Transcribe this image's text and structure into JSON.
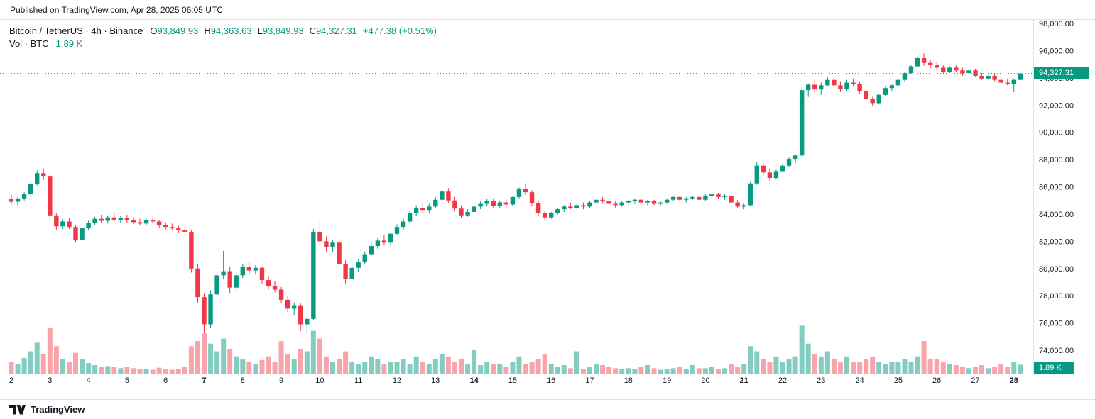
{
  "header": {
    "published": "Published on TradingView.com, Apr 28, 2025 06:05 UTC"
  },
  "legend": {
    "title": "Bitcoin / TetherUS · 4h · Binance",
    "ohlc": [
      {
        "label": "O",
        "value": "93,849.93"
      },
      {
        "label": "H",
        "value": "94,363.63"
      },
      {
        "label": "L",
        "value": "93,849.93"
      },
      {
        "label": "C",
        "value": "94,327.31"
      }
    ],
    "change": "+477.38 (+0.51%)",
    "volume_label": "Vol · BTC",
    "volume_value": "1.89 K"
  },
  "badges": {
    "last_price": "94,327.31",
    "last_volume": "1.89 K"
  },
  "footer": {
    "brand": "TradingView"
  },
  "colors": {
    "up": "#089981",
    "down": "#F23645",
    "vol_up": "rgba(8,153,129,0.5)",
    "vol_down": "rgba(242,54,69,0.45)",
    "badge_bg": "#089981",
    "axis_text": "#131722",
    "last_price_line": "#787b86",
    "separator": "#e0e3eb"
  },
  "chart_data": {
    "type": "candlestick",
    "title": "Bitcoin / TetherUS · 4h · Binance",
    "symbol": "Bitcoin / TetherUS",
    "interval": "4h",
    "exchange": "Binance",
    "legend_last": {
      "open": 93849.93,
      "high": 94363.63,
      "low": 93849.93,
      "close": 94327.31,
      "change": 477.38,
      "change_pct": 0.51,
      "volume_k": 1.89
    },
    "y_axis": {
      "top_value": 98260,
      "bottom_value": 72230,
      "tick_values": [
        98000,
        96000,
        94000,
        92000,
        90000,
        88000,
        86000,
        84000,
        82000,
        80000,
        78000,
        76000,
        74000
      ],
      "tick_labels": [
        "98,000.00",
        "96,000.00",
        "94,000.00",
        "92,000.00",
        "90,000.00",
        "88,000.00",
        "86,000.00",
        "84,000.00",
        "82,000.00",
        "80,000.00",
        "78,000.00",
        "76,000.00",
        "74,000.00"
      ]
    },
    "volume_axis": {
      "max_k": 9.7
    },
    "x_axis": {
      "ticks": [
        {
          "label": "2",
          "index": 0,
          "bold": false
        },
        {
          "label": "3",
          "index": 6,
          "bold": false
        },
        {
          "label": "4",
          "index": 12,
          "bold": false
        },
        {
          "label": "5",
          "index": 18,
          "bold": false
        },
        {
          "label": "6",
          "index": 24,
          "bold": false
        },
        {
          "label": "7",
          "index": 30,
          "bold": true
        },
        {
          "label": "8",
          "index": 36,
          "bold": false
        },
        {
          "label": "9",
          "index": 42,
          "bold": false
        },
        {
          "label": "10",
          "index": 48,
          "bold": false
        },
        {
          "label": "11",
          "index": 54,
          "bold": false
        },
        {
          "label": "12",
          "index": 60,
          "bold": false
        },
        {
          "label": "13",
          "index": 66,
          "bold": false
        },
        {
          "label": "14",
          "index": 72,
          "bold": true
        },
        {
          "label": "15",
          "index": 78,
          "bold": false
        },
        {
          "label": "16",
          "index": 84,
          "bold": false
        },
        {
          "label": "17",
          "index": 90,
          "bold": false
        },
        {
          "label": "18",
          "index": 96,
          "bold": false
        },
        {
          "label": "19",
          "index": 102,
          "bold": false
        },
        {
          "label": "20",
          "index": 108,
          "bold": false
        },
        {
          "label": "21",
          "index": 114,
          "bold": true
        },
        {
          "label": "22",
          "index": 120,
          "bold": false
        },
        {
          "label": "23",
          "index": 126,
          "bold": false
        },
        {
          "label": "24",
          "index": 132,
          "bold": false
        },
        {
          "label": "25",
          "index": 138,
          "bold": false
        },
        {
          "label": "26",
          "index": 144,
          "bold": false
        },
        {
          "label": "27",
          "index": 150,
          "bold": false
        },
        {
          "label": "28",
          "index": 156,
          "bold": true
        }
      ]
    },
    "candles": [
      [
        85100,
        85400,
        84700,
        84900
      ],
      [
        84900,
        85250,
        84650,
        85150
      ],
      [
        85150,
        85600,
        85000,
        85450
      ],
      [
        85450,
        86300,
        85350,
        86200
      ],
      [
        86200,
        87200,
        86100,
        87000
      ],
      [
        87000,
        87350,
        86500,
        86800
      ],
      [
        86800,
        86900,
        83600,
        83900
      ],
      [
        83900,
        84100,
        82800,
        83100
      ],
      [
        83100,
        83600,
        82900,
        83450
      ],
      [
        83450,
        83700,
        82900,
        83050
      ],
      [
        83050,
        83200,
        81900,
        82100
      ],
      [
        82100,
        83100,
        82000,
        82950
      ],
      [
        82950,
        83500,
        82800,
        83350
      ],
      [
        83350,
        83800,
        83200,
        83650
      ],
      [
        83650,
        83950,
        83350,
        83500
      ],
      [
        83500,
        83850,
        83300,
        83750
      ],
      [
        83750,
        84050,
        83450,
        83550
      ],
      [
        83550,
        83850,
        83350,
        83700
      ],
      [
        83700,
        83950,
        83350,
        83550
      ],
      [
        83550,
        83750,
        83250,
        83400
      ],
      [
        83400,
        83650,
        83150,
        83300
      ],
      [
        83300,
        83650,
        83200,
        83550
      ],
      [
        83550,
        83750,
        83300,
        83450
      ],
      [
        83450,
        83550,
        83000,
        83200
      ],
      [
        83200,
        83400,
        82850,
        83050
      ],
      [
        83050,
        83300,
        82800,
        82950
      ],
      [
        82950,
        83150,
        82650,
        82850
      ],
      [
        82850,
        83050,
        82550,
        82700
      ],
      [
        82700,
        82800,
        79700,
        80000
      ],
      [
        80000,
        80300,
        77500,
        77900
      ],
      [
        77900,
        78200,
        75300,
        75900
      ],
      [
        75900,
        78400,
        75600,
        78100
      ],
      [
        78100,
        79800,
        77900,
        79500
      ],
      [
        79500,
        81300,
        79200,
        79800
      ],
      [
        79800,
        80100,
        78200,
        78600
      ],
      [
        78600,
        79700,
        78400,
        79500
      ],
      [
        79500,
        80300,
        79300,
        80100
      ],
      [
        80100,
        80450,
        79600,
        79850
      ],
      [
        79850,
        80250,
        79550,
        80050
      ],
      [
        80050,
        80150,
        78900,
        79150
      ],
      [
        79150,
        79450,
        78450,
        78700
      ],
      [
        78700,
        79050,
        78250,
        78450
      ],
      [
        78450,
        78650,
        77450,
        77700
      ],
      [
        77700,
        77950,
        76800,
        77050
      ],
      [
        77050,
        77500,
        76550,
        77300
      ],
      [
        77300,
        77450,
        75400,
        75900
      ],
      [
        75900,
        76500,
        75300,
        76300
      ],
      [
        76300,
        82900,
        76200,
        82700
      ],
      [
        82700,
        83500,
        81700,
        82000
      ],
      [
        82000,
        82350,
        81250,
        81550
      ],
      [
        81550,
        82050,
        81200,
        81900
      ],
      [
        81900,
        82050,
        80100,
        80350
      ],
      [
        80350,
        80600,
        78900,
        79250
      ],
      [
        79250,
        80250,
        79050,
        80050
      ],
      [
        80050,
        80650,
        79750,
        80450
      ],
      [
        80450,
        81250,
        80350,
        81050
      ],
      [
        81050,
        81850,
        80950,
        81650
      ],
      [
        81650,
        82250,
        81450,
        82050
      ],
      [
        82050,
        82450,
        81700,
        81900
      ],
      [
        81900,
        82650,
        81800,
        82550
      ],
      [
        82550,
        83250,
        82450,
        83050
      ],
      [
        83050,
        83650,
        82850,
        83450
      ],
      [
        83450,
        84250,
        83350,
        84050
      ],
      [
        84050,
        84650,
        83850,
        84450
      ],
      [
        84450,
        84850,
        84100,
        84300
      ],
      [
        84300,
        84750,
        84050,
        84550
      ],
      [
        84550,
        85250,
        84450,
        85050
      ],
      [
        85050,
        85850,
        84950,
        85650
      ],
      [
        85650,
        85900,
        84800,
        85000
      ],
      [
        85000,
        85250,
        84200,
        84400
      ],
      [
        84400,
        84650,
        83700,
        83900
      ],
      [
        83900,
        84350,
        83800,
        84150
      ],
      [
        84150,
        84650,
        84050,
        84550
      ],
      [
        84550,
        84950,
        84350,
        84750
      ],
      [
        84750,
        85150,
        84550,
        84950
      ],
      [
        84950,
        85150,
        84400,
        84600
      ],
      [
        84600,
        84950,
        84400,
        84850
      ],
      [
        84850,
        85050,
        84500,
        84700
      ],
      [
        84700,
        85350,
        84600,
        85250
      ],
      [
        85250,
        85950,
        85150,
        85850
      ],
      [
        85850,
        86200,
        85400,
        85600
      ],
      [
        85600,
        85750,
        84600,
        84800
      ],
      [
        84800,
        84950,
        83850,
        84050
      ],
      [
        84050,
        84250,
        83550,
        83750
      ],
      [
        83750,
        84150,
        83650,
        84050
      ],
      [
        84050,
        84450,
        83950,
        84350
      ],
      [
        84350,
        84650,
        84150,
        84550
      ],
      [
        84550,
        84850,
        84350,
        84450
      ],
      [
        84450,
        84750,
        84250,
        84650
      ],
      [
        84650,
        84850,
        84350,
        84550
      ],
      [
        84550,
        84950,
        84450,
        84850
      ],
      [
        84850,
        85150,
        84650,
        85050
      ],
      [
        85050,
        85250,
        84750,
        84950
      ],
      [
        84950,
        85150,
        84650,
        84750
      ],
      [
        84750,
        84950,
        84450,
        84650
      ],
      [
        84650,
        84950,
        84550,
        84850
      ],
      [
        84850,
        85050,
        84650,
        84950
      ],
      [
        84950,
        85150,
        84750,
        85050
      ],
      [
        85050,
        85150,
        84750,
        84850
      ],
      [
        84850,
        85050,
        84650,
        84950
      ],
      [
        84950,
        85050,
        84650,
        84750
      ],
      [
        84750,
        84950,
        84550,
        84850
      ],
      [
        84850,
        85150,
        84750,
        85050
      ],
      [
        85050,
        85350,
        84950,
        85250
      ],
      [
        85250,
        85350,
        84950,
        85050
      ],
      [
        85050,
        85250,
        84850,
        85150
      ],
      [
        85150,
        85350,
        85050,
        85250
      ],
      [
        85250,
        85350,
        84950,
        85050
      ],
      [
        85050,
        85450,
        84950,
        85350
      ],
      [
        85350,
        85550,
        85150,
        85450
      ],
      [
        85450,
        85550,
        85150,
        85250
      ],
      [
        85250,
        85450,
        85050,
        85350
      ],
      [
        85350,
        85450,
        84750,
        84850
      ],
      [
        84850,
        85050,
        84450,
        84550
      ],
      [
        84550,
        84750,
        84350,
        84650
      ],
      [
        84650,
        86350,
        84550,
        86250
      ],
      [
        86250,
        87800,
        86150,
        87550
      ],
      [
        87550,
        87750,
        86850,
        87050
      ],
      [
        87050,
        87350,
        86450,
        86650
      ],
      [
        86650,
        87250,
        86550,
        87150
      ],
      [
        87150,
        87650,
        87050,
        87550
      ],
      [
        87550,
        88150,
        87450,
        88050
      ],
      [
        88050,
        88400,
        87750,
        88300
      ],
      [
        88300,
        93300,
        88200,
        93100
      ],
      [
        93100,
        93600,
        92600,
        93500
      ],
      [
        93500,
        93900,
        92900,
        93150
      ],
      [
        93150,
        93650,
        92750,
        93450
      ],
      [
        93450,
        94100,
        93350,
        93850
      ],
      [
        93850,
        94050,
        93250,
        93450
      ],
      [
        93450,
        93750,
        92950,
        93150
      ],
      [
        93150,
        93850,
        93050,
        93650
      ],
      [
        93650,
        93950,
        93350,
        93550
      ],
      [
        93550,
        93750,
        92850,
        93050
      ],
      [
        93050,
        93250,
        92250,
        92450
      ],
      [
        92450,
        92600,
        91950,
        92150
      ],
      [
        92150,
        92850,
        92050,
        92750
      ],
      [
        92750,
        93350,
        92650,
        93250
      ],
      [
        93250,
        93550,
        93050,
        93450
      ],
      [
        93450,
        93950,
        93350,
        93850
      ],
      [
        93850,
        94450,
        93750,
        94350
      ],
      [
        94350,
        94950,
        94250,
        94850
      ],
      [
        94850,
        95550,
        94750,
        95450
      ],
      [
        95450,
        95800,
        94900,
        95100
      ],
      [
        95100,
        95350,
        94700,
        94950
      ],
      [
        94950,
        95150,
        94550,
        94750
      ],
      [
        94750,
        94950,
        94250,
        94450
      ],
      [
        94450,
        94850,
        94350,
        94750
      ],
      [
        94750,
        94950,
        94450,
        94550
      ],
      [
        94550,
        94750,
        94150,
        94350
      ],
      [
        94350,
        94650,
        94250,
        94550
      ],
      [
        94550,
        94650,
        94050,
        94150
      ],
      [
        94150,
        94350,
        93850,
        93950
      ],
      [
        93950,
        94250,
        93850,
        94150
      ],
      [
        94150,
        94250,
        93750,
        93850
      ],
      [
        93850,
        94050,
        93550,
        93650
      ],
      [
        93650,
        93950,
        93450,
        93550
      ],
      [
        93550,
        93950,
        92950,
        93850
      ],
      [
        93849.93,
        94363.63,
        93849.93,
        94327.31
      ]
    ],
    "volumes_k": [
      2.5,
      2.0,
      3.2,
      4.5,
      6.2,
      4.0,
      9.0,
      5.5,
      3.0,
      2.5,
      4.2,
      3.0,
      2.2,
      1.8,
      1.5,
      1.6,
      1.4,
      1.2,
      1.5,
      1.2,
      1.0,
      1.1,
      0.9,
      1.3,
      1.0,
      0.9,
      1.1,
      1.5,
      5.5,
      6.5,
      8.0,
      6.0,
      4.5,
      7.0,
      5.0,
      3.5,
      3.0,
      2.5,
      2.0,
      2.8,
      3.5,
      2.5,
      6.5,
      4.0,
      3.0,
      5.0,
      4.5,
      8.5,
      7.0,
      3.5,
      2.5,
      3.0,
      4.5,
      2.5,
      2.0,
      2.5,
      3.5,
      3.0,
      2.0,
      2.5,
      2.5,
      3.0,
      2.0,
      3.5,
      2.5,
      2.0,
      3.0,
      4.0,
      3.5,
      2.5,
      3.0,
      2.0,
      4.8,
      1.8,
      2.5,
      2.0,
      2.0,
      1.5,
      2.5,
      3.5,
      2.0,
      2.5,
      3.0,
      4.0,
      2.0,
      1.5,
      1.8,
      1.2,
      4.5,
      1.0,
      1.5,
      2.0,
      1.8,
      1.5,
      1.2,
      1.0,
      1.2,
      1.0,
      1.5,
      1.8,
      1.2,
      0.9,
      1.0,
      1.2,
      1.5,
      1.0,
      1.8,
      1.2,
      1.2,
      1.5,
      1.0,
      1.2,
      2.0,
      1.5,
      2.0,
      5.5,
      4.5,
      3.0,
      2.5,
      3.5,
      2.5,
      3.0,
      3.5,
      9.5,
      6.0,
      4.0,
      3.5,
      4.5,
      3.0,
      2.5,
      3.5,
      2.5,
      2.5,
      3.0,
      3.5,
      2.5,
      2.0,
      2.5,
      2.5,
      3.0,
      2.5,
      3.5,
      6.5,
      3.0,
      3.0,
      2.5,
      2.0,
      1.8,
      1.5,
      1.2,
      1.5,
      1.8,
      1.2,
      1.5,
      2.0,
      1.5,
      2.5,
      1.89
    ]
  }
}
